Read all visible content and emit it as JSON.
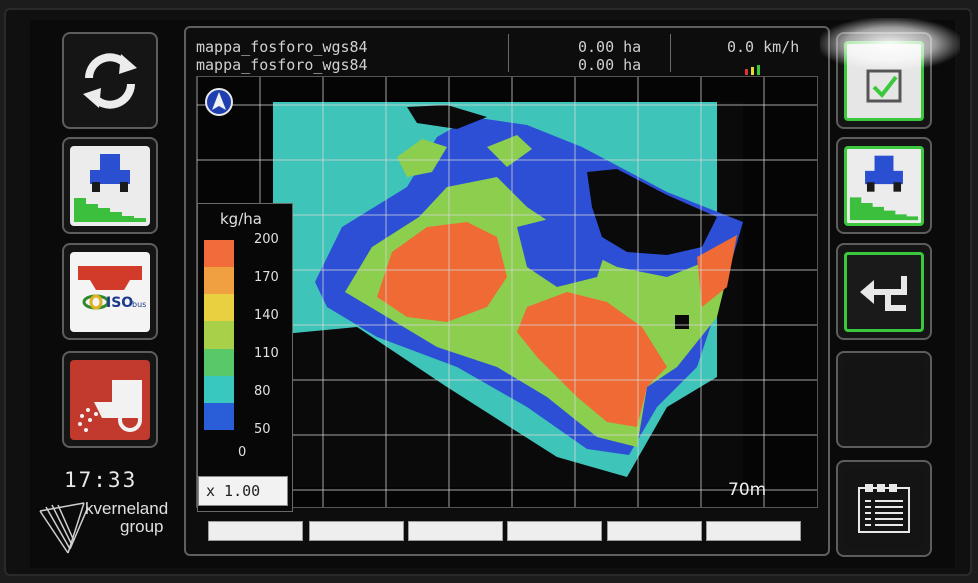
{
  "header": {
    "map_name_1": "mappa_fosforo_wgs84",
    "map_name_2": "mappa_fosforo_wgs84",
    "area_1": "0.00 ha",
    "area_2": "0.00 ha",
    "speed": "0.0 km/h"
  },
  "legend": {
    "unit": "kg/ha",
    "ticks": [
      "200",
      "170",
      "140",
      "110",
      "80",
      "50",
      "0"
    ],
    "colors": [
      "#f26b3a",
      "#f0a040",
      "#e8d040",
      "#a8d048",
      "#58c868",
      "#38c8c0",
      "#2a5ed8"
    ]
  },
  "map": {
    "zoom": "x 1.00",
    "scale_label": "70m",
    "colors": {
      "background_field": "#3ec4b8",
      "blue": "#2c4fd6",
      "green": "#8ccf4e",
      "orange": "#ef6a35",
      "black": "#0a0a0a"
    }
  },
  "left_buttons": [
    {
      "icon": "refresh-icon"
    },
    {
      "icon": "tractor-rate-icon"
    },
    {
      "icon": "isobus-icon"
    },
    {
      "icon": "spreader-icon"
    }
  ],
  "right_buttons": [
    {
      "icon": "confirm-icon"
    },
    {
      "icon": "tractor-rate-icon"
    },
    {
      "icon": "return-icon"
    },
    {
      "icon": "blank"
    },
    {
      "icon": "document-icon"
    }
  ],
  "clock": "17:33",
  "brand": {
    "line1": "kverneland",
    "line2": "group"
  },
  "function_keys": [
    "",
    "",
    "",
    "",
    "",
    ""
  ]
}
